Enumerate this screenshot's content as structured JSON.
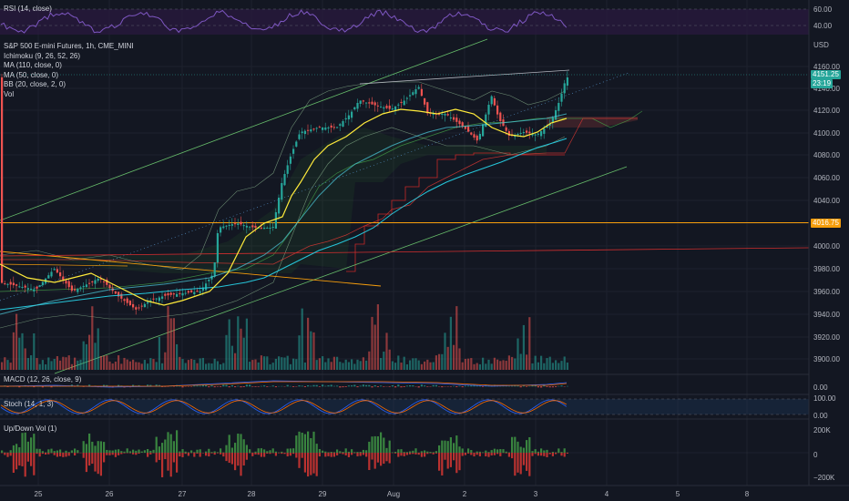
{
  "rsi": {
    "label": "RSI (14, close)",
    "ticks": [
      "40.00",
      "60.00"
    ]
  },
  "main": {
    "symbol": "S&P 500 E-mini Futures, 1h, CME_MINI",
    "indicators": [
      "Ichimoku (9, 26, 52, 26)",
      "MA (110, close, 0)",
      "MA (50, close, 0)",
      "BB (20, close, 2, 0)",
      "Vol"
    ],
    "currency": "USD",
    "price_ticks": [
      "4160.00",
      "4140.00",
      "4120.00",
      "4100.00",
      "4080.00",
      "4060.00",
      "4040.00",
      "4020.00",
      "4000.00",
      "3980.00",
      "3960.00",
      "3940.00",
      "3920.00",
      "3900.00"
    ],
    "current_price": "4151.25",
    "countdown": "23:19",
    "level_price": "4016.75",
    "colors": {
      "up": "#26a69a",
      "down": "#ef5350",
      "level": "#f59d0c",
      "ma_fast": "#ffeb3b",
      "ma_slow": "#4dd0e1"
    }
  },
  "macd": {
    "label": "MACD (12, 26, close, 9)",
    "ticks": [
      "0.00"
    ]
  },
  "stoch": {
    "label": "Stoch (14, 1, 3)",
    "ticks": [
      "100.00",
      "0.00"
    ]
  },
  "updown": {
    "label": "Up/Down Vol (1)",
    "ticks": [
      "200K",
      "0",
      "−200K"
    ]
  },
  "time_axis": [
    "25",
    "26",
    "27",
    "28",
    "29",
    "Aug",
    "2",
    "3",
    "4",
    "5",
    "8"
  ]
}
